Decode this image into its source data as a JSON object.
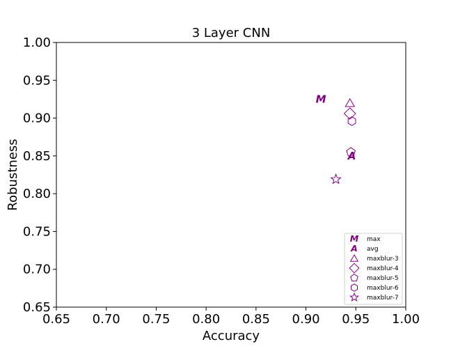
{
  "chart_data": {
    "type": "scatter",
    "title": "3 Layer CNN",
    "xlabel": "Accuracy",
    "ylabel": "Robustness",
    "xlim": [
      0.65,
      1.0
    ],
    "ylim": [
      0.65,
      1.0
    ],
    "xticks": [
      "0.65",
      "0.70",
      "0.75",
      "0.80",
      "0.85",
      "0.90",
      "0.95",
      "1.00"
    ],
    "yticks": [
      "0.65",
      "0.70",
      "0.75",
      "0.80",
      "0.85",
      "0.90",
      "0.95",
      "1.00"
    ],
    "grid": false,
    "legend_position": "bottom-right",
    "color": "#800080",
    "series": [
      {
        "name": "max",
        "marker": "M",
        "x": [
          0.915
        ],
        "y": [
          0.925
        ]
      },
      {
        "name": "avg",
        "marker": "A",
        "x": [
          0.946
        ],
        "y": [
          0.85
        ]
      },
      {
        "name": "maxblur-3",
        "marker": "triangle",
        "x": [
          0.944
        ],
        "y": [
          0.92
        ]
      },
      {
        "name": "maxblur-4",
        "marker": "diamond",
        "x": [
          0.944
        ],
        "y": [
          0.906
        ]
      },
      {
        "name": "maxblur-5",
        "marker": "pentagon",
        "x": [
          0.945
        ],
        "y": [
          0.855
        ]
      },
      {
        "name": "maxblur-6",
        "marker": "hexagon",
        "x": [
          0.946
        ],
        "y": [
          0.896
        ]
      },
      {
        "name": "maxblur-7",
        "marker": "star",
        "x": [
          0.93
        ],
        "y": [
          0.819
        ]
      }
    ]
  }
}
